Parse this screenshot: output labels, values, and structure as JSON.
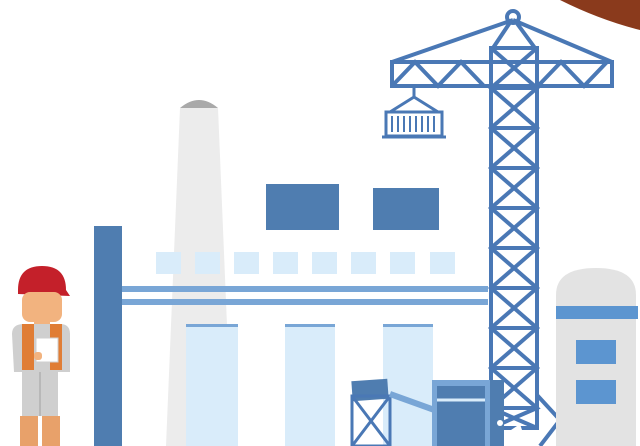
{
  "scene": {
    "subject": "industrial-construction-illustration",
    "elements": [
      "worker",
      "chimney",
      "factory",
      "tower-crane",
      "hanging-container",
      "silo",
      "conveyor",
      "machine"
    ]
  },
  "colors": {
    "background": "#ffffff",
    "steel_blue": "#4f7db0",
    "crane_blue": "#4a78b5",
    "light_blue": "#d9ecfa",
    "mid_blue": "#79a6d6",
    "chimney_grey": "#ececec",
    "cap_grey": "#a9a9a9",
    "helmet_red": "#c4202a",
    "vest_orange": "#e07d35",
    "skin": "#f2b37f",
    "corner_brown": "#8a3a1c"
  }
}
